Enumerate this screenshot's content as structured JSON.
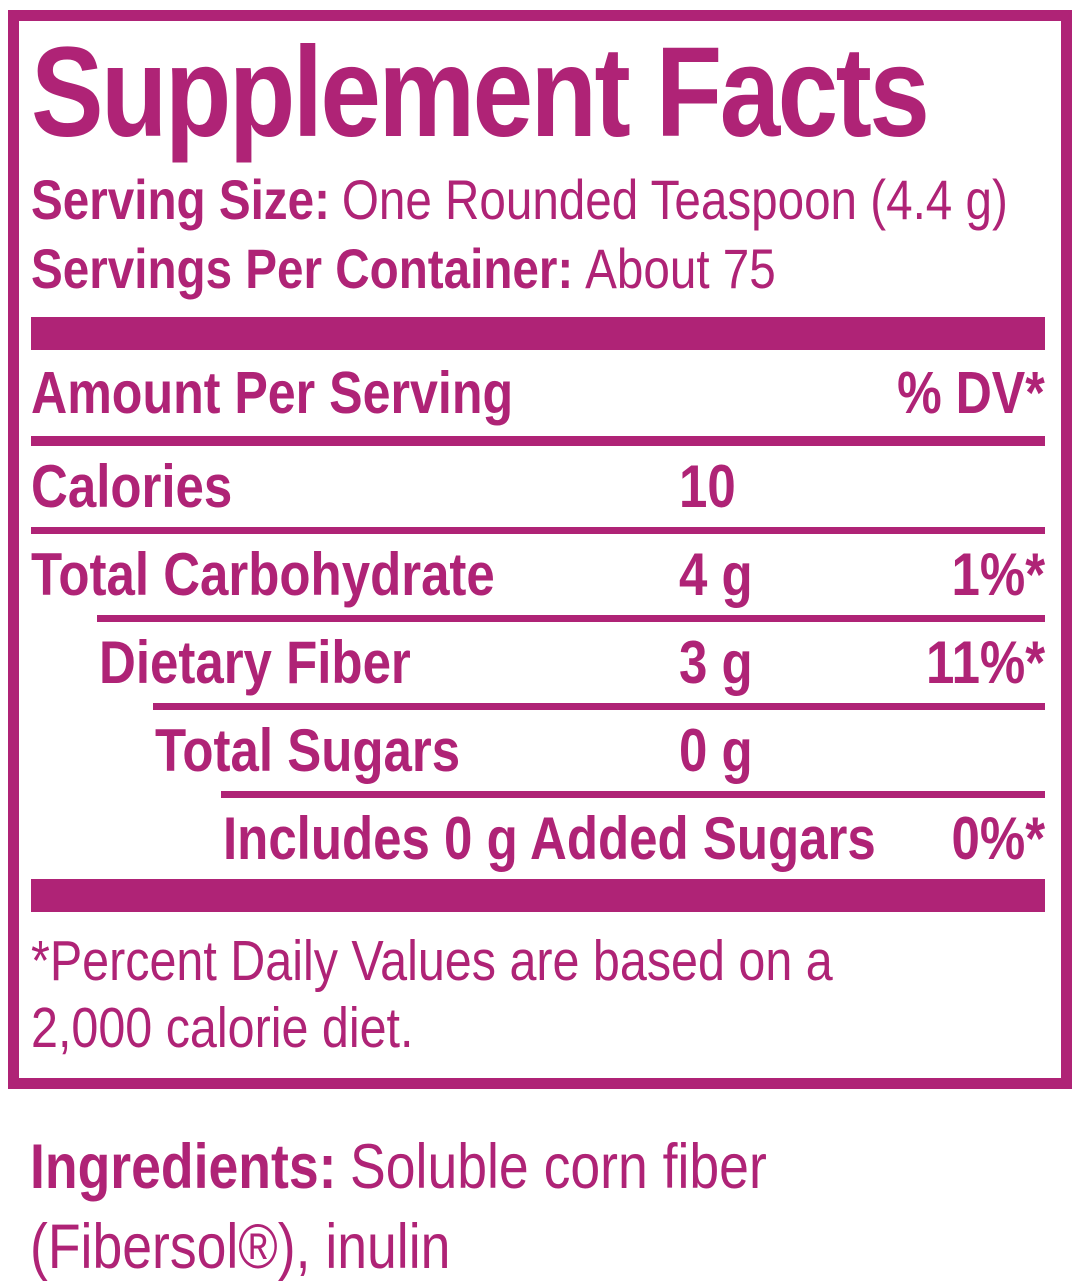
{
  "theme": {
    "accent_magenta": "#AF2376",
    "background": "#FFFFFF"
  },
  "panel": {
    "title": "Supplement Facts",
    "serving_size_label": "Serving Size:",
    "serving_size_value": "One Rounded Teaspoon (4.4 g)",
    "servings_per_container_label": "Servings Per Container:",
    "servings_per_container_value": "About 75",
    "amount_per_serving_header": "Amount Per Serving",
    "daily_value_header": "% DV*",
    "rows": [
      {
        "name": "Calories",
        "amount": "10",
        "dv": ""
      },
      {
        "name": "Total Carbohydrate",
        "amount": "4 g",
        "dv": "1%*"
      },
      {
        "name": "Dietary Fiber",
        "amount": "3 g",
        "dv": "11%*"
      },
      {
        "name": "Total Sugars",
        "amount": "0 g",
        "dv": ""
      },
      {
        "name": "Includes 0 g Added Sugars",
        "amount": "",
        "dv": "0%*"
      }
    ],
    "footnote_lines": [
      "*Percent Daily Values are based on a",
      "2,000 calorie diet."
    ]
  },
  "ingredients": {
    "label": "Ingredients:",
    "value_line1": "Soluble corn fiber",
    "value_line2": "(Fibersol®), inulin"
  }
}
